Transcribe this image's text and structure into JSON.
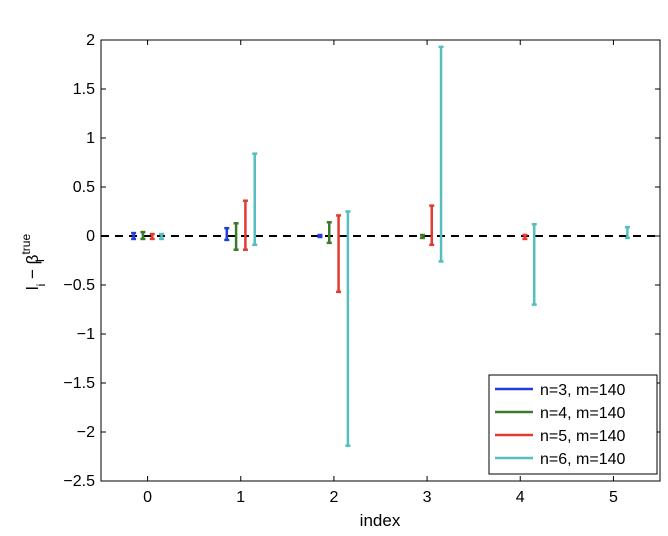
{
  "chart_data": {
    "type": "errorbar",
    "xlabel": "index",
    "ylabel": {
      "main": "l",
      "sub1": "i",
      "minus": " − β",
      "sup": "true",
      "sub2": "i"
    },
    "xlim": [
      -0.5,
      5.5
    ],
    "ylim": [
      -2.5,
      2
    ],
    "x_ticks": [
      0,
      1,
      2,
      3,
      4,
      5
    ],
    "y_ticks": [
      -2.5,
      -2,
      -1.5,
      -1,
      -0.5,
      0,
      0.5,
      1,
      1.5,
      2
    ],
    "y_tick_labels": [
      "−2.5",
      "−2",
      "−1.5",
      "−1",
      "−0.5",
      "0",
      "0.5",
      "1",
      "1.5",
      "2"
    ],
    "reference_line": {
      "y": 0,
      "style": "dashed",
      "color": "#000000"
    },
    "legend_position": "bottom-right",
    "series": [
      {
        "name": "n=3, m=140",
        "color": "#1f3fd8",
        "offset": -0.15,
        "bars": [
          {
            "index": 0,
            "low": -0.03,
            "high": 0.03
          },
          {
            "index": 1,
            "low": -0.04,
            "high": 0.08
          },
          {
            "index": 2,
            "low": -0.01,
            "high": 0.01
          }
        ]
      },
      {
        "name": "n=4, m=140",
        "color": "#3a7a2a",
        "offset": -0.05,
        "bars": [
          {
            "index": 0,
            "low": -0.03,
            "high": 0.04
          },
          {
            "index": 1,
            "low": -0.14,
            "high": 0.13
          },
          {
            "index": 2,
            "low": -0.07,
            "high": 0.14
          },
          {
            "index": 3,
            "low": -0.02,
            "high": 0.01
          }
        ]
      },
      {
        "name": "n=5, m=140",
        "color": "#e03c31",
        "offset": 0.05,
        "bars": [
          {
            "index": 0,
            "low": -0.03,
            "high": 0.02
          },
          {
            "index": 1,
            "low": -0.14,
            "high": 0.36
          },
          {
            "index": 2,
            "low": -0.57,
            "high": 0.21
          },
          {
            "index": 3,
            "low": -0.09,
            "high": 0.31
          },
          {
            "index": 4,
            "low": -0.03,
            "high": 0.01
          }
        ]
      },
      {
        "name": "n=6, m=140",
        "color": "#55bfbf",
        "offset": 0.15,
        "bars": [
          {
            "index": 0,
            "low": -0.03,
            "high": 0.02
          },
          {
            "index": 1,
            "low": -0.09,
            "high": 0.84
          },
          {
            "index": 2,
            "low": -2.14,
            "high": 0.25
          },
          {
            "index": 3,
            "low": -0.26,
            "high": 1.93
          },
          {
            "index": 4,
            "low": -0.7,
            "high": 0.12
          },
          {
            "index": 5,
            "low": -0.02,
            "high": 0.09
          }
        ]
      }
    ]
  }
}
